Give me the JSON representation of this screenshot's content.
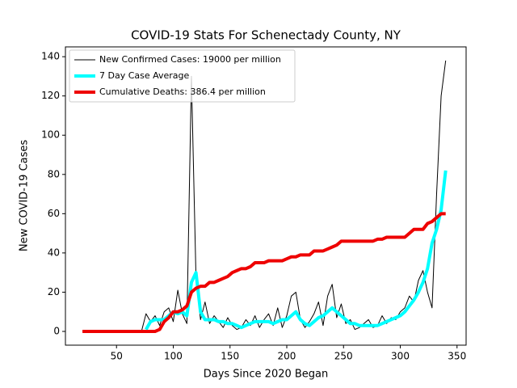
{
  "chart_data": {
    "type": "line",
    "title": "COVID-19 Stats For Schenectady County, NY",
    "x_label": "Days Since 2020 Began",
    "y_label": "New COVID-19 Cases",
    "xlim": [
      5,
      358
    ],
    "ylim": [
      -7,
      145
    ],
    "xticks": [
      50,
      100,
      150,
      200,
      250,
      300,
      350
    ],
    "yticks": [
      0,
      20,
      40,
      60,
      80,
      100,
      120,
      140
    ],
    "legend": "upper left",
    "x": [
      20,
      24,
      28,
      32,
      36,
      40,
      44,
      48,
      52,
      56,
      60,
      64,
      68,
      72,
      76,
      80,
      84,
      88,
      92,
      96,
      100,
      104,
      108,
      112,
      116,
      120,
      124,
      128,
      132,
      136,
      140,
      144,
      148,
      152,
      156,
      160,
      164,
      168,
      172,
      176,
      180,
      184,
      188,
      192,
      196,
      200,
      204,
      208,
      212,
      216,
      220,
      224,
      228,
      232,
      236,
      240,
      244,
      248,
      252,
      256,
      260,
      264,
      268,
      272,
      276,
      280,
      284,
      288,
      292,
      296,
      300,
      304,
      308,
      312,
      316,
      320,
      324,
      328,
      332,
      336,
      340
    ],
    "series": [
      {
        "name": "New Confirmed Cases: 19000 per million",
        "color": "#000000",
        "linewidth": 1,
        "values": [
          0,
          0,
          0,
          0,
          0,
          0,
          0,
          0,
          0,
          0,
          0,
          0,
          0,
          0,
          9,
          5,
          8,
          3,
          10,
          12,
          5,
          21,
          9,
          4,
          130,
          28,
          6,
          15,
          4,
          8,
          5,
          2,
          7,
          3,
          1,
          2,
          6,
          3,
          8,
          2,
          6,
          9,
          3,
          12,
          2,
          8,
          18,
          20,
          6,
          2,
          5,
          9,
          15,
          3,
          18,
          24,
          7,
          14,
          4,
          6,
          1,
          2,
          4,
          6,
          2,
          3,
          8,
          4,
          7,
          6,
          10,
          12,
          18,
          15,
          26,
          31,
          20,
          12,
          70,
          120,
          138
        ]
      },
      {
        "name": "7 Day Case Average",
        "color": "#00ffff",
        "linewidth": 4,
        "values": [
          null,
          null,
          null,
          null,
          null,
          null,
          null,
          null,
          null,
          null,
          null,
          null,
          null,
          null,
          1,
          5,
          6,
          6,
          6,
          8,
          10,
          9,
          10,
          8,
          25,
          30,
          10,
          6,
          6,
          6,
          5,
          5,
          4,
          4,
          3,
          2,
          3,
          4,
          5,
          5,
          5,
          5,
          4,
          5,
          6,
          6,
          8,
          10,
          6,
          4,
          3,
          5,
          7,
          8,
          10,
          12,
          10,
          8,
          6,
          4,
          4,
          3,
          3,
          3,
          3,
          3,
          4,
          5,
          6,
          7,
          8,
          10,
          13,
          16,
          20,
          25,
          32,
          45,
          52,
          62,
          82
        ]
      },
      {
        "name": "Cumulative Deaths: 386.4 per million",
        "color": "#ee0000",
        "linewidth": 4,
        "values": [
          0,
          0,
          0,
          0,
          0,
          0,
          0,
          0,
          0,
          0,
          0,
          0,
          0,
          0,
          0,
          0,
          0,
          1,
          5,
          7,
          10,
          10,
          11,
          13,
          20,
          22,
          23,
          23,
          25,
          25,
          26,
          27,
          28,
          30,
          31,
          32,
          32,
          33,
          35,
          35,
          35,
          36,
          36,
          36,
          36,
          37,
          38,
          38,
          39,
          39,
          39,
          41,
          41,
          41,
          42,
          43,
          44,
          46,
          46,
          46,
          46,
          46,
          46,
          46,
          46,
          47,
          47,
          48,
          48,
          48,
          48,
          48,
          50,
          52,
          52,
          52,
          55,
          56,
          58,
          60,
          60
        ]
      }
    ]
  }
}
